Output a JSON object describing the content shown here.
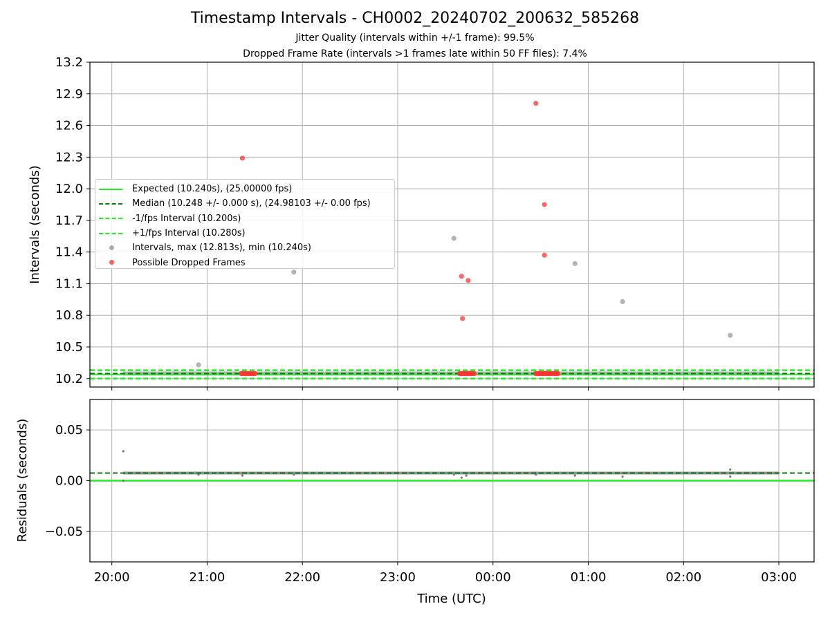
{
  "title": "Timestamp Intervals - CH0002_20240702_200632_585268",
  "subtitle1": "Jitter Quality (intervals within +/-1 frame): 99.5%",
  "subtitle2": "Dropped Frame Rate (intervals >1 frames late within 50 FF files): 7.4%",
  "colors": {
    "expected": "#22ee22",
    "median": "#117711",
    "bounds": "#22ee22",
    "intervals": "#999999",
    "dropped": "#ff3333",
    "residuals": "#777777"
  },
  "legend": [
    {
      "label": "Expected (10.240s), (25.00000 fps)",
      "style": "solid",
      "color": "#22ee22"
    },
    {
      "label": "Median (10.248 +/- 0.000 s), (24.98103 +/- 0.00 fps)",
      "style": "dashed",
      "color": "#117711"
    },
    {
      "label": "-1/fps Interval (10.200s)",
      "style": "dashed",
      "color": "#22ee22"
    },
    {
      "label": "+1/fps Interval (10.280s)",
      "style": "dashed",
      "color": "#22ee22"
    },
    {
      "label": "Intervals, max (12.813s), min (10.240s)",
      "style": "dot",
      "color": "#999999"
    },
    {
      "label": "Possible Dropped Frames",
      "style": "dot",
      "color": "#ff3333"
    }
  ],
  "chart_data": [
    {
      "type": "scatter",
      "title": "Timestamp Intervals - CH0002_20240702_200632_585268",
      "ylabel": "Intervals (seconds)",
      "xlabel": "",
      "x_unit": "hours since 20:00 UTC",
      "xlim": [
        -0.23,
        7.37
      ],
      "ylim": [
        10.12,
        13.2
      ],
      "yticks": [
        10.2,
        10.5,
        10.8,
        11.1,
        11.4,
        11.7,
        12.0,
        12.3,
        12.6,
        12.9,
        13.2
      ],
      "ytick_labels": [
        "10.2",
        "10.5",
        "10.8",
        "11.1",
        "11.4",
        "11.7",
        "12.0",
        "12.3",
        "12.6",
        "12.9",
        "13.2"
      ],
      "grid": true,
      "legend_position": "upper-left",
      "reference_lines": {
        "expected": 10.24,
        "median": 10.248,
        "minus_1fps": 10.2,
        "plus_1fps": 10.28
      },
      "interval_series_range": [
        0.12,
        7.0
      ],
      "interval_points": [
        {
          "x": 0.91,
          "y": 10.33
        },
        {
          "x": 1.91,
          "y": 11.21
        },
        {
          "x": 3.59,
          "y": 11.53
        },
        {
          "x": 4.86,
          "y": 11.29
        },
        {
          "x": 5.36,
          "y": 10.93
        },
        {
          "x": 6.49,
          "y": 10.61
        }
      ],
      "dropped_points": [
        {
          "x": 1.37,
          "y": 12.29
        },
        {
          "x": 3.67,
          "y": 11.17
        },
        {
          "x": 3.74,
          "y": 11.13
        },
        {
          "x": 3.68,
          "y": 10.77
        },
        {
          "x": 4.45,
          "y": 12.81
        },
        {
          "x": 4.54,
          "y": 11.85
        },
        {
          "x": 4.54,
          "y": 11.37
        }
      ],
      "dropped_clusters": [
        {
          "x_from": 1.36,
          "x_to": 1.5,
          "y": 10.248
        },
        {
          "x_from": 3.65,
          "x_to": 3.8,
          "y": 10.248
        },
        {
          "x_from": 4.45,
          "x_to": 4.68,
          "y": 10.248
        }
      ]
    },
    {
      "type": "scatter",
      "title": "",
      "ylabel": "Residuals (seconds)",
      "xlabel": "Time (UTC)",
      "x_unit": "hours since 20:00 UTC",
      "xlim": [
        -0.23,
        7.37
      ],
      "ylim": [
        -0.08,
        0.08
      ],
      "yticks": [
        -0.05,
        0.0,
        0.05
      ],
      "ytick_labels": [
        "−0.05",
        "0.00",
        "0.05"
      ],
      "xticks": [
        0,
        1,
        2,
        3,
        4,
        5,
        6,
        7
      ],
      "xtick_labels": [
        "20:00",
        "21:00",
        "22:00",
        "23:00",
        "00:00",
        "01:00",
        "02:00",
        "03:00"
      ],
      "grid": true,
      "reference_lines": {
        "expected": 0.0,
        "median": 0.0075
      },
      "residual_band": {
        "x_from": 0.12,
        "x_to": 7.0,
        "y": 0.0075
      },
      "residual_points": [
        {
          "x": 0.12,
          "y": 0.029
        },
        {
          "x": 0.12,
          "y": 0.0
        },
        {
          "x": 0.91,
          "y": 0.006
        },
        {
          "x": 1.37,
          "y": 0.005
        },
        {
          "x": 1.91,
          "y": 0.006
        },
        {
          "x": 3.59,
          "y": 0.006
        },
        {
          "x": 3.67,
          "y": 0.003
        },
        {
          "x": 3.72,
          "y": 0.005
        },
        {
          "x": 4.45,
          "y": 0.006
        },
        {
          "x": 4.86,
          "y": 0.005
        },
        {
          "x": 5.36,
          "y": 0.004
        },
        {
          "x": 6.49,
          "y": 0.004
        },
        {
          "x": 6.49,
          "y": 0.011
        }
      ]
    }
  ]
}
